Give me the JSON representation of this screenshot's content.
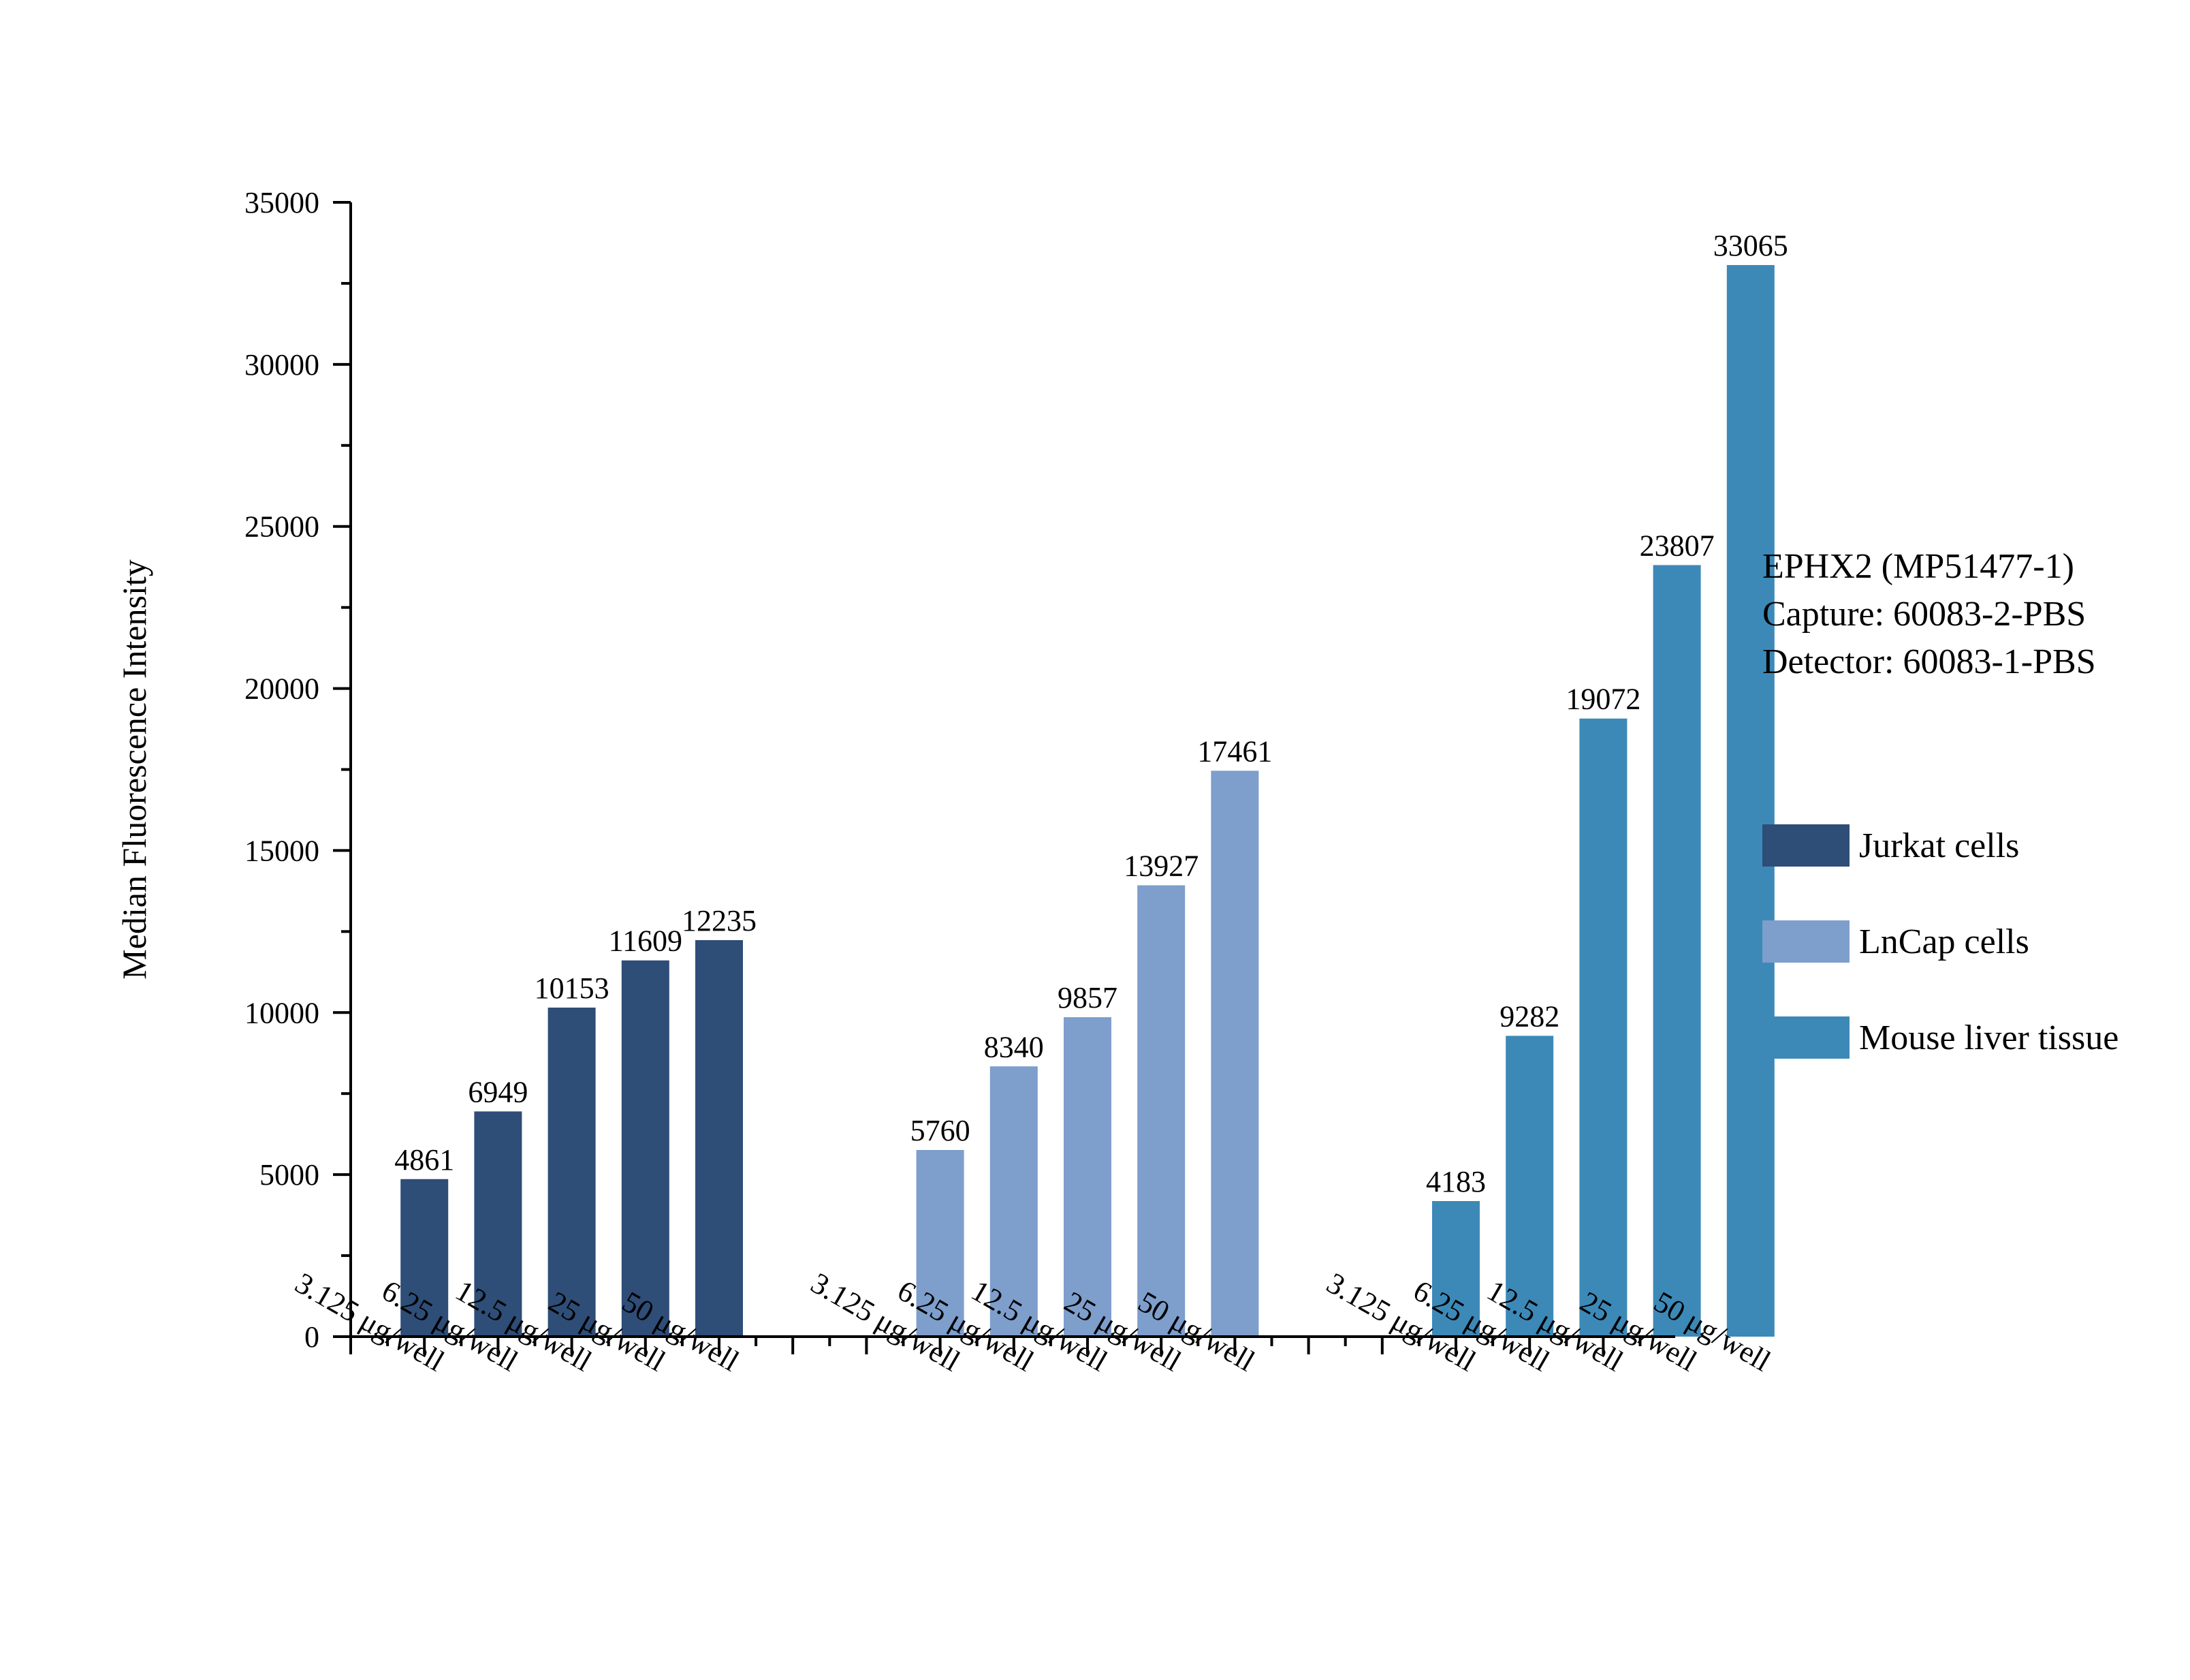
{
  "chart_data": {
    "type": "bar",
    "ylabel": "Median Fluorescence Intensity",
    "xlabel": "",
    "ylim": [
      0,
      35000
    ],
    "yticks": [
      0,
      5000,
      10000,
      15000,
      20000,
      25000,
      30000,
      35000
    ],
    "legend_position": "right",
    "annotation": [
      "EPHX2 (MP51477-1)",
      "Capture: 60083-2-PBS",
      "Detector: 60083-1-PBS"
    ],
    "categories": [
      "3.125 μg/well",
      "6.25 μg/well",
      "12.5 μg/well",
      "25 μg/well",
      "50 μg/well"
    ],
    "series": [
      {
        "name": "Jurkat cells",
        "color": "#2E4D77",
        "values": [
          4861,
          6949,
          10153,
          11609,
          12235
        ]
      },
      {
        "name": "LnCap cells",
        "color": "#7E9ECC",
        "values": [
          5760,
          8340,
          9857,
          13927,
          17461
        ]
      },
      {
        "name": "Mouse liver tissue",
        "color": "#3C89B8",
        "values": [
          4183,
          9282,
          19072,
          23807,
          33065
        ]
      }
    ]
  }
}
